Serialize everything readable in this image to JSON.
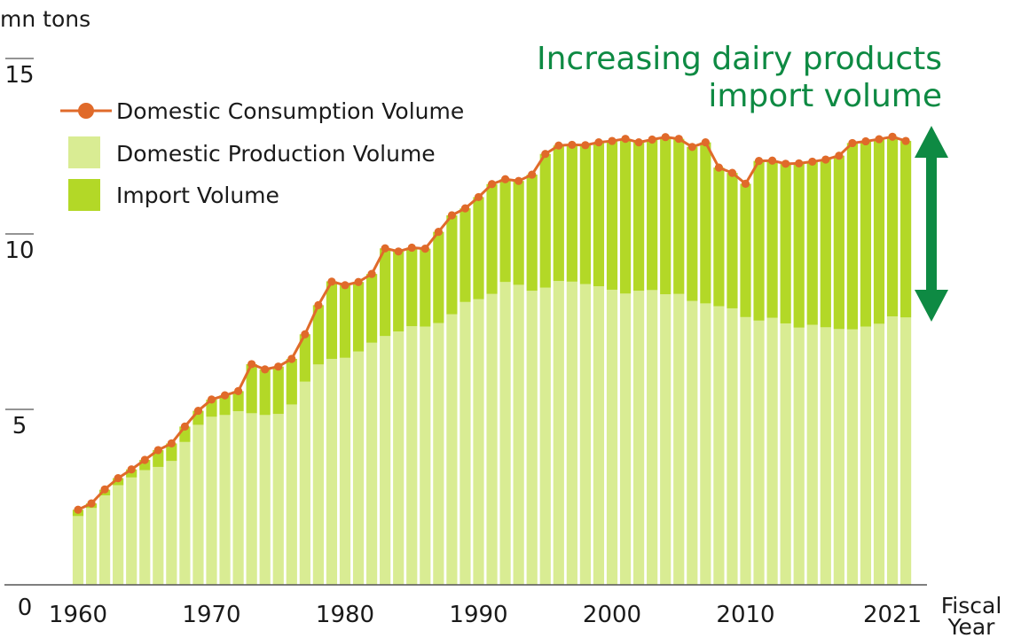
{
  "chart_data": {
    "type": "bar",
    "y_unit": "mn tons",
    "xlabel": [
      "Fiscal",
      "Year"
    ],
    "ylim": [
      0,
      15
    ],
    "y_ticks": [
      0,
      5,
      10,
      15
    ],
    "x_tick_labels": [
      "1960",
      "1970",
      "1980",
      "1990",
      "2000",
      "2010",
      "2021"
    ],
    "x_tick_years": [
      1960,
      1970,
      1980,
      1990,
      2000,
      2010,
      2021
    ],
    "years": [
      1960,
      1961,
      1962,
      1963,
      1964,
      1965,
      1966,
      1967,
      1968,
      1969,
      1970,
      1971,
      1972,
      1973,
      1974,
      1975,
      1976,
      1977,
      1978,
      1979,
      1980,
      1981,
      1982,
      1983,
      1984,
      1985,
      1986,
      1987,
      1988,
      1989,
      1990,
      1991,
      1992,
      1993,
      1994,
      1995,
      1996,
      1997,
      1998,
      1999,
      2000,
      2001,
      2002,
      2003,
      2004,
      2005,
      2006,
      2007,
      2008,
      2009,
      2010,
      2011,
      2012,
      2013,
      2014,
      2015,
      2016,
      2017,
      2018,
      2019,
      2020,
      2021,
      2022
    ],
    "series": [
      {
        "name": "Domestic Production Volume",
        "color": "#d9ec93",
        "values": [
          1.96,
          2.19,
          2.55,
          2.84,
          3.06,
          3.27,
          3.36,
          3.53,
          4.07,
          4.56,
          4.79,
          4.84,
          4.95,
          4.89,
          4.84,
          4.87,
          5.14,
          5.79,
          6.28,
          6.44,
          6.47,
          6.65,
          6.9,
          7.09,
          7.22,
          7.37,
          7.36,
          7.46,
          7.71,
          8.06,
          8.14,
          8.29,
          8.63,
          8.55,
          8.38,
          8.47,
          8.66,
          8.64,
          8.57,
          8.51,
          8.41,
          8.3,
          8.38,
          8.4,
          8.28,
          8.29,
          8.09,
          8.02,
          7.94,
          7.88,
          7.63,
          7.53,
          7.61,
          7.45,
          7.33,
          7.41,
          7.34,
          7.29,
          7.28,
          7.36,
          7.44,
          7.65,
          7.62
        ]
      },
      {
        "name": "Import Volume",
        "color": "#b3d827",
        "values": [
          0.18,
          0.13,
          0.16,
          0.2,
          0.23,
          0.29,
          0.48,
          0.5,
          0.44,
          0.4,
          0.49,
          0.56,
          0.57,
          1.4,
          1.3,
          1.35,
          1.3,
          1.35,
          1.69,
          2.21,
          2.07,
          1.98,
          1.96,
          2.5,
          2.28,
          2.24,
          2.22,
          2.6,
          2.82,
          2.67,
          2.91,
          3.13,
          2.93,
          2.96,
          3.31,
          3.81,
          3.86,
          3.9,
          3.96,
          4.1,
          4.24,
          4.41,
          4.23,
          4.29,
          4.48,
          4.42,
          4.39,
          4.59,
          3.95,
          3.86,
          3.8,
          4.55,
          4.48,
          4.55,
          4.68,
          4.65,
          4.78,
          4.94,
          5.31,
          5.28,
          5.26,
          5.12,
          5.03
        ]
      },
      {
        "name": "Domestic Consumption Volume",
        "color": "#e06a2a",
        "values": [
          2.14,
          2.32,
          2.72,
          3.04,
          3.29,
          3.56,
          3.84,
          4.03,
          4.51,
          4.96,
          5.28,
          5.4,
          5.52,
          6.29,
          6.14,
          6.22,
          6.44,
          7.14,
          7.97,
          8.64,
          8.54,
          8.63,
          8.86,
          9.59,
          9.5,
          9.61,
          9.58,
          10.06,
          10.53,
          10.73,
          11.05,
          11.42,
          11.56,
          11.51,
          11.69,
          12.28,
          12.52,
          12.54,
          12.53,
          12.61,
          12.65,
          12.71,
          12.61,
          12.69,
          12.76,
          12.71,
          12.48,
          12.61,
          11.89,
          11.74,
          11.43,
          12.08,
          12.09,
          12.0,
          12.01,
          12.06,
          12.12,
          12.23,
          12.59,
          12.64,
          12.7,
          12.77,
          12.65
        ]
      }
    ],
    "legend": {
      "consumption_label": "Domestic Consumption Volume",
      "production_label": "Domestic Production Volume",
      "import_label": "Import Volume",
      "placement": "top-left"
    },
    "annotation": {
      "line1": "Increasing dairy products",
      "line2": "import volume",
      "color": "#0e8a43"
    },
    "grid": false
  }
}
